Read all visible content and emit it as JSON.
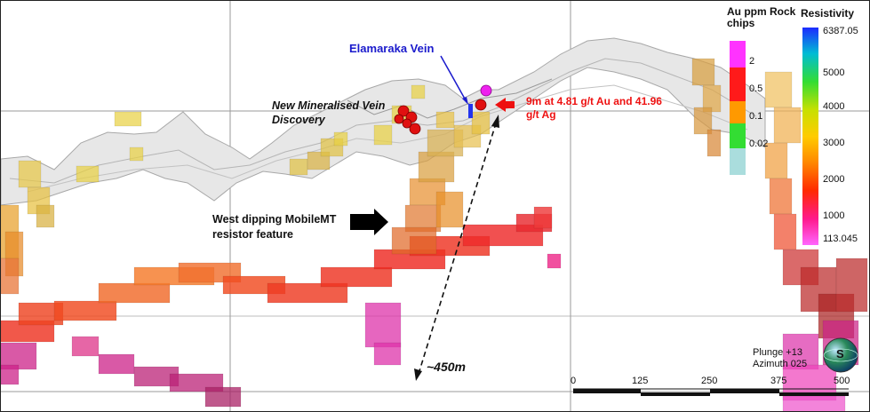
{
  "annotations": {
    "vein_name": "Elamaraka Vein",
    "discovery_line1": "New Mineralised Vein",
    "discovery_line2": "Discovery",
    "intercept_line1": "9m at 4.81 g/t Au and 41.96",
    "intercept_line2": "g/t Ag",
    "resistor_line1": "West dipping MobileMT",
    "resistor_line2": "resistor feature",
    "depth": "~450m"
  },
  "au_legend": {
    "title_line1": "Au ppm Rock",
    "title_line2": "chips",
    "ticks": [
      "2",
      "0.5",
      "0.1",
      "0.02"
    ],
    "colors": [
      "#ff33ff",
      "#ff1a1a",
      "#ff9900",
      "#33dd33",
      "#aadddd"
    ]
  },
  "resistivity_legend": {
    "title": "Resistivity",
    "ticks": [
      "6387.05",
      "5000",
      "4000",
      "3000",
      "2000",
      "1000",
      "113.045"
    ]
  },
  "scale_bar": {
    "ticks": [
      "0",
      "125",
      "250",
      "375",
      "500"
    ]
  },
  "orientation": {
    "plunge": "Plunge +13",
    "azimuth": "Azimuth 025",
    "compass_letter": "S"
  },
  "colors": {
    "vein_label": "#1a1acc",
    "intercept_label": "#ee1111",
    "topo": "#e6e6e6"
  }
}
